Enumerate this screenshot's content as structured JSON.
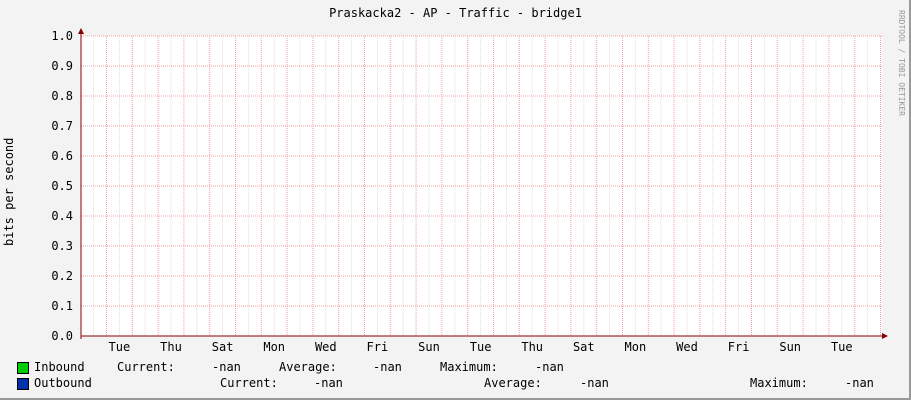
{
  "title": "Praskacka2 - AP - Traffic - bridge1",
  "watermark": "RRDTOOL / TOBI OETIKER",
  "chart_data": {
    "type": "line",
    "title": "Praskacka2 - AP - Traffic - bridge1",
    "ylabel": "bits per second",
    "xlabel": "",
    "ylim": [
      0,
      1.0
    ],
    "yticks": [
      "0.0",
      "0.1",
      "0.2",
      "0.3",
      "0.4",
      "0.5",
      "0.6",
      "0.7",
      "0.8",
      "0.9",
      "1.0"
    ],
    "xticks": [
      "Tue",
      "Thu",
      "Sat",
      "Mon",
      "Wed",
      "Fri",
      "Sun",
      "Tue",
      "Thu",
      "Sat",
      "Mon",
      "Wed",
      "Fri",
      "Sun",
      "Tue"
    ],
    "grid": true,
    "series": [
      {
        "name": "Inbound",
        "color": "#00cc00",
        "values": []
      },
      {
        "name": "Outbound",
        "color": "#0033aa",
        "values": []
      }
    ]
  },
  "legend": [
    {
      "name": "Inbound",
      "color": "#00cc00",
      "current_label": "Current:",
      "current": "-nan",
      "average_label": "Average:",
      "average": "-nan",
      "maximum_label": "Maximum:",
      "maximum": "-nan"
    },
    {
      "name": "Outbound",
      "color": "#0033aa",
      "current_label": "Current:",
      "current": "-nan",
      "average_label": "Average:",
      "average": "-nan",
      "maximum_label": "Maximum:",
      "maximum": "-nan"
    }
  ]
}
